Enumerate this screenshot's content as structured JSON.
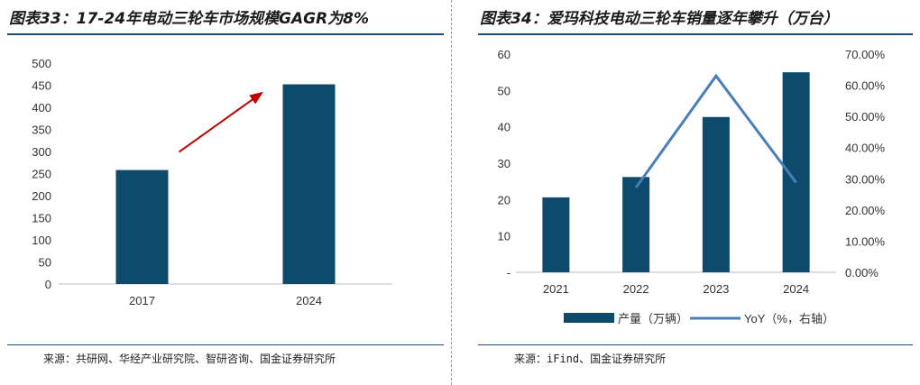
{
  "panels": [
    {
      "title": "图表33：17-24年电动三轮车市场规模GAGR为8%",
      "source": "来源：共研网、华经产业研究院、智研咨询、国金证券研究所",
      "chart_data": {
        "type": "bar",
        "categories": [
          "2017",
          "2024"
        ],
        "values": [
          258,
          452
        ],
        "ylim": [
          0,
          500
        ],
        "yticks": [
          "0",
          "50",
          "100",
          "150",
          "200",
          "250",
          "300",
          "350",
          "400",
          "450",
          "500"
        ],
        "annotation": "red-trend-arrow",
        "colors": {
          "bar": "#0d4a6b",
          "arrow": "#c00000"
        }
      }
    },
    {
      "title": "图表34：爱玛科技电动三轮车销量逐年攀升（万台）",
      "source": "来源：iFind、国金证券研究所",
      "chart_data": {
        "type": "bar",
        "categories": [
          "2021",
          "2022",
          "2023",
          "2024"
        ],
        "series": [
          {
            "name": "产量（万辆）",
            "type": "bar",
            "axis": "left",
            "values": [
              20.6,
              26.2,
              42.7,
              55.0
            ]
          },
          {
            "name": "YoY（%，右轴）",
            "type": "line",
            "axis": "right",
            "values": [
              null,
              27.2,
              63.0,
              28.8
            ]
          }
        ],
        "ylim": [
          0,
          60
        ],
        "yticks": [
          "-",
          "10",
          "20",
          "30",
          "40",
          "50",
          "60"
        ],
        "y2lim": [
          0,
          70
        ],
        "y2ticks": [
          "0.00%",
          "10.00%",
          "20.00%",
          "30.00%",
          "40.00%",
          "50.00%",
          "60.00%",
          "70.00%"
        ],
        "legend_position": "bottom",
        "colors": {
          "bar": "#0d4a6b",
          "line": "#4a7ebb"
        }
      }
    }
  ]
}
